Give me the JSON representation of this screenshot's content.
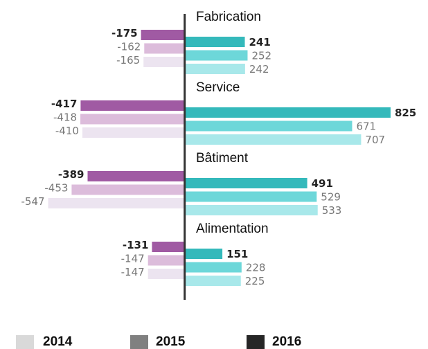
{
  "chart_data": {
    "type": "diverging-bar",
    "categories": [
      "Fabrication",
      "Service",
      "Bâtiment",
      "Alimentation"
    ],
    "xlim": [
      -740,
      975
    ],
    "series": [
      {
        "name": "2014",
        "color": "#d9d9d9",
        "negative_color": "#ece4f0",
        "positive_color": "#a8e8ea",
        "label_bold": false,
        "negative_values": [
          -165,
          -410,
          -547,
          -147
        ],
        "positive_values": [
          242,
          707,
          533,
          225
        ]
      },
      {
        "name": "2015",
        "color": "#808080",
        "negative_color": "#dcbcdb",
        "positive_color": "#6dd7d9",
        "label_bold": false,
        "negative_values": [
          -162,
          -418,
          -453,
          -147
        ],
        "positive_values": [
          252,
          671,
          529,
          228
        ]
      },
      {
        "name": "2016",
        "color": "#262626",
        "negative_color": "#a05aa3",
        "positive_color": "#34b9bb",
        "label_bold": true,
        "negative_values": [
          -175,
          -417,
          -389,
          -131
        ],
        "positive_values": [
          241,
          825,
          491,
          151
        ]
      }
    ]
  }
}
